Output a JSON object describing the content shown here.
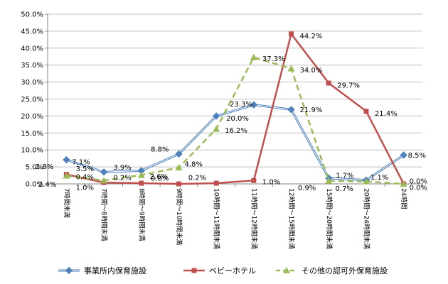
{
  "chart_data": {
    "type": "line",
    "categories": [
      "7時間未満",
      "7時間～8時間未満",
      "8時間～9時間未満",
      "9時間～10時間未満",
      "10時間～11時間未満",
      "11時間～12時間未満",
      "12時間～15時間未満",
      "15時間～20時間未満",
      "20時間～24時間未満",
      "24時間"
    ],
    "ylim": [
      0,
      50
    ],
    "yticks": [
      "0.0%",
      "5.0%",
      "10.0%",
      "15.0%",
      "20.0%",
      "25.0%",
      "30.0%",
      "35.0%",
      "40.0%",
      "45.0%",
      "50.0%"
    ],
    "grid": true,
    "legend_position": "bottom",
    "series": [
      {
        "name": "事業所内保育施設",
        "color": "#4F81BD",
        "marker": "diamond",
        "values": [
          7.1,
          3.5,
          3.9,
          8.8,
          20.0,
          23.3,
          21.9,
          1.7,
          1.1,
          8.5
        ],
        "labels": [
          "7.1%",
          "3.5%",
          "3.9%",
          "8.8%",
          "20.0%",
          "23.3%",
          "21.9%",
          "1.7%",
          "1.1%",
          "8.5%"
        ]
      },
      {
        "name": "ベビーホテル",
        "color": "#C0504D",
        "marker": "square",
        "values": [
          2.8,
          0.4,
          0.2,
          0.0,
          0.2,
          1.0,
          44.2,
          29.7,
          21.4,
          0.0
        ],
        "labels": [
          "2.8%",
          "0.4%",
          "0.2%",
          "0.0%",
          "0.2%",
          "1.0%",
          "44.2%",
          "29.7%",
          "21.4%",
          "0.0%"
        ]
      },
      {
        "name": "その他の認可外保育施設",
        "color": "#9BBB59",
        "marker": "triangle",
        "values": [
          2.4,
          1.0,
          2.6,
          4.8,
          16.2,
          37.3,
          34.0,
          0.9,
          0.7,
          0.0
        ],
        "labels": [
          "2.4%",
          "1.0%",
          "2.6%",
          "4.8%",
          "16.2%",
          "37.3%",
          "34.0%",
          "0.9%",
          "0.7%",
          "0.0%"
        ]
      }
    ]
  }
}
